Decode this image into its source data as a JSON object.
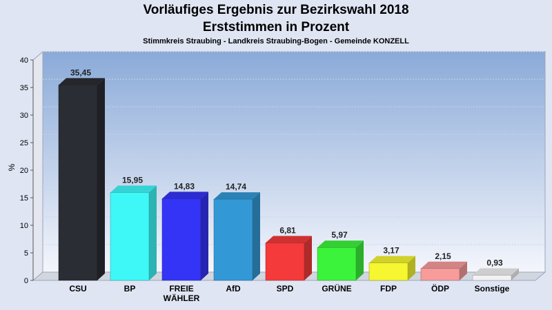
{
  "header": {
    "title_line1": "Vorläufiges Ergebnis zur Bezirkswahl 2018",
    "title_line2": "Erststimmen in Prozent",
    "subtitle": "Stimmkreis Straubing - Landkreis Straubing-Bogen - Gemeinde KONZELL"
  },
  "chart_data": {
    "type": "bar",
    "title": "Vorläufiges Ergebnis zur Bezirkswahl 2018 Erststimmen in Prozent",
    "subtitle": "Stimmkreis Straubing - Landkreis Straubing-Bogen - Gemeinde KONZELL",
    "xlabel": "",
    "ylabel": "%",
    "ylim": [
      0,
      40
    ],
    "yticks": [
      0,
      5,
      10,
      15,
      20,
      25,
      30,
      35,
      40
    ],
    "grid": true,
    "categories": [
      "CSU",
      "BP",
      "FREIE WÄHLER",
      "AfD",
      "SPD",
      "GRÜNE",
      "FDP",
      "ÖDP",
      "Sonstige"
    ],
    "category_lines": [
      [
        "CSU"
      ],
      [
        "BP"
      ],
      [
        "FREIE",
        "WÄHLER"
      ],
      [
        "AfD"
      ],
      [
        "SPD"
      ],
      [
        "GRÜNE"
      ],
      [
        "FDP"
      ],
      [
        "ÖDP"
      ],
      [
        "Sonstige"
      ]
    ],
    "values": [
      35.45,
      15.95,
      14.83,
      14.74,
      6.81,
      5.97,
      3.17,
      2.15,
      0.93
    ],
    "value_labels": [
      "35,45",
      "15,95",
      "14,83",
      "14,74",
      "6,81",
      "5,97",
      "3,17",
      "2,15",
      "0,93"
    ],
    "colors": [
      "#2a2d33",
      "#3ef8f8",
      "#3434f6",
      "#3399d6",
      "#f43a3a",
      "#3cf33c",
      "#f6f631",
      "#f89b9b",
      "#f2f2f2"
    ]
  }
}
